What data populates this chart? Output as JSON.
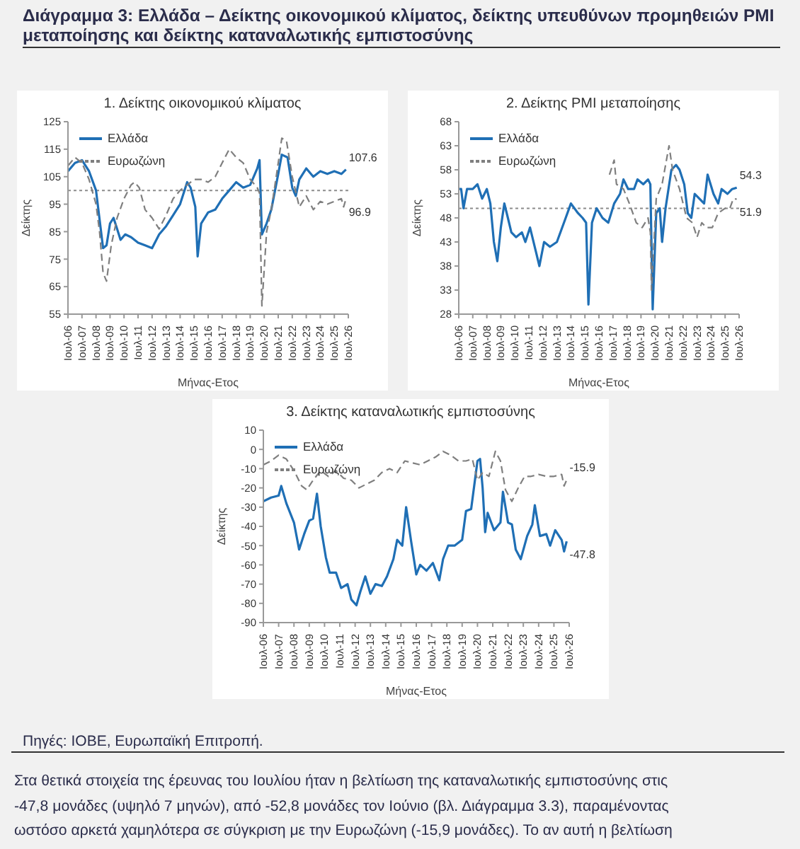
{
  "chart_data": [
    {
      "type": "other",
      "title": "Διάγραμμα 3: Ελλάδα – Δείκτης οικονομικού κλίματος, δείκτης υπευθύνων προμηθειών PMI μεταποίησης και δείκτης καταναλωτικής εμπιστοσύνης",
      "annotations": [
        "Πηγές: ΙΟΒΕ, Ευρωπαϊκή Επιτροπή.",
        "Στα θετικά στοιχεία της έρευνας του Ιουλίου ήταν η βελτίωση της καταναλωτικής εμπιστοσύνης στις",
        "-47,8 μονάδες (υψηλό 7 μηνών), από -52,8 μονάδες τον Ιούνιο (βλ. Διάγραμμα 3.3), παραμένοντας",
        "ωστόσο αρκετά χαμηλότερα σε σύγκριση με την Ευρωζώνη (-15,9 μονάδες). Το αν αυτή η βελτίωση"
      ]
    },
    {
      "type": "line",
      "title": "1. Δείκτης οικονομικού κλίματος",
      "xlabel": "Μήνας-Ετος",
      "ylabel": "Δείκτης",
      "legend": "top left",
      "xlim": [
        "2006-07",
        "2026-07"
      ],
      "xticks": [
        {
          "value": "2006-07",
          "label": "Ιουλ-06"
        },
        {
          "value": "2007-07",
          "label": "Ιουλ-07"
        },
        {
          "value": "2008-07",
          "label": "Ιουλ-08"
        },
        {
          "value": "2009-07",
          "label": "Ιουλ-09"
        },
        {
          "value": "2010-07",
          "label": "Ιουλ-10"
        },
        {
          "value": "2011-07",
          "label": "Ιουλ-11"
        },
        {
          "value": "2012-07",
          "label": "Ιουλ-12"
        },
        {
          "value": "2013-07",
          "label": "Ιουλ-13"
        },
        {
          "value": "2014-07",
          "label": "Ιουλ-14"
        },
        {
          "value": "2015-07",
          "label": "Ιουλ-15"
        },
        {
          "value": "2016-07",
          "label": "Ιουλ-16"
        },
        {
          "value": "2017-07",
          "label": "Ιουλ-17"
        },
        {
          "value": "2018-07",
          "label": "Ιουλ-18"
        },
        {
          "value": "2019-07",
          "label": "Ιουλ-19"
        },
        {
          "value": "2020-07",
          "label": "Ιουλ-20"
        },
        {
          "value": "2021-07",
          "label": "Ιουλ-21"
        },
        {
          "value": "2022-07",
          "label": "Ιουλ-22"
        },
        {
          "value": "2023-07",
          "label": "Ιουλ-23"
        },
        {
          "value": "2024-07",
          "label": "Ιουλ-24"
        },
        {
          "value": "2025-07",
          "label": "Ιουλ-25"
        },
        {
          "value": "2026-07",
          "label": "Ιουλ-26"
        }
      ],
      "ylim": [
        55,
        125
      ],
      "yticks": [
        55,
        65,
        75,
        85,
        95,
        105,
        115,
        125
      ],
      "ref_lines": [
        {
          "axis": "y",
          "value": 100,
          "color": "#8c8c8c",
          "line_style": "dotted"
        }
      ],
      "annotations": [
        {
          "text": "107.6",
          "x": "2026-05",
          "y": 107.6
        },
        {
          "text": "96.9",
          "x": "2026-05",
          "y": 96.9
        }
      ],
      "series": [
        {
          "name": "Ελλάδα",
          "color": "#1f6fb5",
          "line_style": "solid",
          "x": [
            "2006-07",
            "2007-01",
            "2007-07",
            "2008-01",
            "2008-07",
            "2009-01",
            "2009-04",
            "2009-07",
            "2009-10",
            "2010-01",
            "2010-04",
            "2010-08",
            "2011-01",
            "2011-07",
            "2012-01",
            "2012-07",
            "2013-01",
            "2013-07",
            "2014-01",
            "2014-07",
            "2015-01",
            "2015-04",
            "2015-08",
            "2015-10",
            "2016-01",
            "2016-07",
            "2017-01",
            "2017-07",
            "2018-01",
            "2018-07",
            "2019-01",
            "2019-07",
            "2020-01",
            "2020-03",
            "2020-05",
            "2020-09",
            "2021-01",
            "2021-07",
            "2021-10",
            "2022-03",
            "2022-07",
            "2022-10",
            "2023-01",
            "2023-07",
            "2024-01",
            "2024-07",
            "2025-01",
            "2025-07",
            "2026-01",
            "2026-05"
          ],
          "values": [
            107,
            110,
            111,
            107,
            100,
            79,
            80,
            88,
            90,
            86,
            82,
            84,
            83,
            81,
            80,
            79,
            84,
            87,
            91,
            95,
            103,
            101,
            94,
            76,
            88,
            92,
            93,
            97,
            100,
            103,
            101,
            102,
            108,
            111,
            84,
            88,
            93,
            106,
            113,
            112,
            101,
            98,
            104,
            108,
            105,
            107,
            106,
            107,
            106,
            107.6
          ]
        },
        {
          "name": "Ευρωζώνη",
          "color": "#7f7f7f",
          "line_style": "dashed",
          "x": [
            "2006-07",
            "2007-01",
            "2007-07",
            "2008-01",
            "2008-07",
            "2008-10",
            "2009-01",
            "2009-04",
            "2009-08",
            "2010-01",
            "2010-07",
            "2011-01",
            "2011-04",
            "2011-08",
            "2012-01",
            "2012-07",
            "2013-01",
            "2013-07",
            "2014-01",
            "2014-07",
            "2015-01",
            "2015-07",
            "2016-01",
            "2016-07",
            "2017-01",
            "2017-07",
            "2018-01",
            "2018-07",
            "2019-01",
            "2019-07",
            "2020-01",
            "2020-03",
            "2020-05",
            "2020-09",
            "2021-01",
            "2021-07",
            "2021-10",
            "2022-02",
            "2022-07",
            "2023-01",
            "2023-07",
            "2024-01",
            "2024-07",
            "2025-01",
            "2025-07",
            "2026-01",
            "2026-03",
            "2026-05"
          ],
          "values": [
            109,
            112,
            110,
            104,
            95,
            85,
            70,
            67,
            80,
            90,
            97,
            102,
            103,
            101,
            93,
            90,
            86,
            91,
            97,
            100,
            102,
            104,
            104,
            103,
            105,
            110,
            115,
            112,
            110,
            104,
            101,
            99,
            58,
            85,
            93,
            110,
            119,
            118,
            105,
            94,
            98,
            93,
            96,
            95,
            96,
            97,
            94,
            96.9
          ]
        }
      ]
    },
    {
      "type": "line",
      "title": "2. Δείκτης PMI μεταποίησης",
      "xlabel": "Μήνας-Ετος",
      "ylabel": "Δείκτης",
      "legend": "top left",
      "xlim": [
        "2006-07",
        "2026-07"
      ],
      "xticks": [
        {
          "value": "2006-07",
          "label": "Ιουλ-06"
        },
        {
          "value": "2007-07",
          "label": "Ιουλ-07"
        },
        {
          "value": "2008-07",
          "label": "Ιουλ-08"
        },
        {
          "value": "2009-07",
          "label": "Ιουλ-09"
        },
        {
          "value": "2010-07",
          "label": "Ιουλ-10"
        },
        {
          "value": "2011-07",
          "label": "Ιουλ-11"
        },
        {
          "value": "2012-07",
          "label": "Ιουλ-12"
        },
        {
          "value": "2013-07",
          "label": "Ιουλ-13"
        },
        {
          "value": "2014-07",
          "label": "Ιουλ-14"
        },
        {
          "value": "2015-07",
          "label": "Ιουλ-15"
        },
        {
          "value": "2016-07",
          "label": "Ιουλ-16"
        },
        {
          "value": "2017-07",
          "label": "Ιουλ-17"
        },
        {
          "value": "2018-07",
          "label": "Ιουλ-18"
        },
        {
          "value": "2019-07",
          "label": "Ιουλ-19"
        },
        {
          "value": "2020-07",
          "label": "Ιουλ-20"
        },
        {
          "value": "2021-07",
          "label": "Ιουλ-21"
        },
        {
          "value": "2022-07",
          "label": "Ιουλ-22"
        },
        {
          "value": "2023-07",
          "label": "Ιουλ-23"
        },
        {
          "value": "2024-07",
          "label": "Ιουλ-24"
        },
        {
          "value": "2025-07",
          "label": "Ιουλ-25"
        },
        {
          "value": "2026-07",
          "label": "Ιουλ-26"
        }
      ],
      "ylim": [
        28,
        68
      ],
      "yticks": [
        28,
        33,
        38,
        43,
        48,
        53,
        58,
        63,
        68
      ],
      "ref_lines": [
        {
          "axis": "y",
          "value": 50,
          "color": "#8c8c8c",
          "line_style": "dotted"
        }
      ],
      "annotations": [
        {
          "text": "54.3",
          "x": "2026-05",
          "y": 54.3
        },
        {
          "text": "51.9",
          "x": "2026-05",
          "y": 51.9
        }
      ],
      "series": [
        {
          "name": "Ελλάδα",
          "color": "#1f6fb5",
          "line_style": "solid",
          "x": [
            "2006-07",
            "2006-09",
            "2006-11",
            "2007-02",
            "2007-07",
            "2007-11",
            "2008-03",
            "2008-07",
            "2008-10",
            "2009-01",
            "2009-04",
            "2009-07",
            "2009-10",
            "2010-01",
            "2010-04",
            "2010-08",
            "2011-01",
            "2011-04",
            "2011-08",
            "2012-01",
            "2012-04",
            "2012-08",
            "2013-01",
            "2013-07",
            "2014-01",
            "2014-07",
            "2015-01",
            "2015-05",
            "2015-08",
            "2015-10",
            "2016-01",
            "2016-05",
            "2016-10",
            "2017-03",
            "2017-08",
            "2018-01",
            "2018-04",
            "2018-08",
            "2019-01",
            "2019-04",
            "2019-09",
            "2020-01",
            "2020-03",
            "2020-05",
            "2020-08",
            "2020-11",
            "2021-01",
            "2021-04",
            "2021-09",
            "2022-01",
            "2022-04",
            "2022-08",
            "2022-11",
            "2023-02",
            "2023-05",
            "2023-09",
            "2024-01",
            "2024-04",
            "2024-09",
            "2025-01",
            "2025-04",
            "2025-09",
            "2026-01",
            "2026-05"
          ],
          "values": [
            54,
            54,
            50,
            54,
            54,
            55,
            52,
            54,
            51,
            43,
            39,
            46,
            51,
            48,
            45,
            44,
            45,
            43,
            46,
            41,
            38,
            43,
            42,
            43,
            47,
            51,
            49,
            48,
            47,
            30,
            47,
            50,
            48,
            47,
            51,
            53,
            56,
            54,
            54,
            56,
            55,
            56,
            55,
            29,
            49,
            50,
            43,
            50,
            58,
            59,
            58,
            55,
            49,
            48,
            53,
            52,
            51,
            57,
            53,
            51,
            54,
            53,
            54,
            54.3
          ]
        },
        {
          "name": "Ευρωζώνη",
          "color": "#7f7f7f",
          "line_style": "dashed",
          "x": [
            "2017-04",
            "2017-08",
            "2017-10",
            "2018-04",
            "2018-09",
            "2019-03",
            "2019-08",
            "2020-01",
            "2020-03",
            "2020-04",
            "2020-08",
            "2021-01",
            "2021-07",
            "2021-10",
            "2022-04",
            "2022-10",
            "2023-03",
            "2023-07",
            "2023-11",
            "2024-03",
            "2024-08",
            "2025-01",
            "2025-07",
            "2025-11",
            "2026-02",
            "2026-05"
          ],
          "values": [
            57,
            60,
            55,
            54,
            51,
            47,
            46,
            48,
            45,
            33,
            52,
            55,
            63,
            58,
            54,
            48,
            47,
            44,
            47,
            46,
            46,
            49,
            50,
            50,
            52,
            51.9
          ]
        }
      ]
    },
    {
      "type": "line",
      "title": "3. Δείκτης καταναλωτικής εμπιστοσύνης",
      "xlabel": "Μήνας-Ετος",
      "ylabel": "Δείκτης",
      "legend": "top left",
      "xlim": [
        "2006-07",
        "2026-07"
      ],
      "xticks": [
        {
          "value": "2006-07",
          "label": "Ιουλ-06"
        },
        {
          "value": "2007-07",
          "label": "Ιουλ-07"
        },
        {
          "value": "2008-07",
          "label": "Ιουλ-08"
        },
        {
          "value": "2009-07",
          "label": "Ιουλ-09"
        },
        {
          "value": "2010-07",
          "label": "Ιουλ-10"
        },
        {
          "value": "2011-07",
          "label": "Ιουλ-11"
        },
        {
          "value": "2012-07",
          "label": "Ιουλ-12"
        },
        {
          "value": "2013-07",
          "label": "Ιουλ-13"
        },
        {
          "value": "2014-07",
          "label": "Ιουλ-14"
        },
        {
          "value": "2015-07",
          "label": "Ιουλ-15"
        },
        {
          "value": "2016-07",
          "label": "Ιουλ-16"
        },
        {
          "value": "2017-07",
          "label": "Ιουλ-17"
        },
        {
          "value": "2018-07",
          "label": "Ιουλ-18"
        },
        {
          "value": "2019-07",
          "label": "Ιουλ-19"
        },
        {
          "value": "2020-07",
          "label": "Ιουλ-20"
        },
        {
          "value": "2021-07",
          "label": "Ιουλ-21"
        },
        {
          "value": "2022-07",
          "label": "Ιουλ-22"
        },
        {
          "value": "2023-07",
          "label": "Ιουλ-23"
        },
        {
          "value": "2024-07",
          "label": "Ιουλ-24"
        },
        {
          "value": "2025-07",
          "label": "Ιουλ-25"
        },
        {
          "value": "2026-07",
          "label": "Ιουλ-26"
        }
      ],
      "ylim": [
        -90,
        10
      ],
      "yticks": [
        -90,
        -80,
        -70,
        -60,
        -50,
        -40,
        -30,
        -20,
        -10,
        0,
        10
      ],
      "annotations": [
        {
          "text": "-15.9",
          "x": "2026-05",
          "y": -15.9
        },
        {
          "text": "-47.8",
          "x": "2026-05",
          "y": -47.8
        }
      ],
      "series": [
        {
          "name": "Ελλάδα",
          "color": "#1f6fb5",
          "line_style": "solid",
          "x": [
            "2006-07",
            "2007-01",
            "2007-07",
            "2007-09",
            "2008-01",
            "2008-07",
            "2008-11",
            "2009-03",
            "2009-07",
            "2009-10",
            "2010-01",
            "2010-04",
            "2010-08",
            "2010-11",
            "2011-04",
            "2011-08",
            "2012-01",
            "2012-04",
            "2012-08",
            "2012-11",
            "2013-03",
            "2013-07",
            "2013-11",
            "2014-04",
            "2014-08",
            "2015-01",
            "2015-04",
            "2015-08",
            "2015-11",
            "2016-03",
            "2016-07",
            "2016-10",
            "2017-03",
            "2017-08",
            "2018-01",
            "2018-04",
            "2018-08",
            "2019-01",
            "2019-07",
            "2019-10",
            "2020-02",
            "2020-07",
            "2020-09",
            "2020-11",
            "2021-01",
            "2021-03",
            "2021-08",
            "2022-01",
            "2022-03",
            "2022-07",
            "2022-10",
            "2023-01",
            "2023-05",
            "2023-10",
            "2024-02",
            "2024-04",
            "2024-08",
            "2025-01",
            "2025-04",
            "2025-08",
            "2026-01",
            "2026-03",
            "2026-05"
          ],
          "values": [
            -27,
            -25,
            -24,
            -19,
            -28,
            -38,
            -52,
            -44,
            -37,
            -36,
            -23,
            -40,
            -56,
            -64,
            -64,
            -72,
            -70,
            -78,
            -81,
            -74,
            -66,
            -75,
            -70,
            -71,
            -66,
            -57,
            -47,
            -50,
            -30,
            -48,
            -65,
            -60,
            -63,
            -59,
            -68,
            -57,
            -50,
            -50,
            -47,
            -32,
            -31,
            -6,
            -5,
            -20,
            -43,
            -33,
            -42,
            -38,
            -22,
            -38,
            -39,
            -52,
            -57,
            -45,
            -39,
            -29,
            -45,
            -44,
            -50,
            -42,
            -47,
            -53,
            -47.8
          ]
        },
        {
          "name": "Ευρωζώνη",
          "color": "#7f7f7f",
          "line_style": "dashed",
          "x": [
            "2006-07",
            "2007-01",
            "2007-07",
            "2008-01",
            "2008-07",
            "2009-01",
            "2009-05",
            "2009-10",
            "2010-04",
            "2010-10",
            "2011-04",
            "2011-10",
            "2012-04",
            "2012-10",
            "2013-04",
            "2013-10",
            "2014-04",
            "2014-10",
            "2015-04",
            "2015-10",
            "2016-04",
            "2016-10",
            "2017-04",
            "2017-10",
            "2018-04",
            "2018-10",
            "2019-04",
            "2019-10",
            "2020-03",
            "2020-07",
            "2020-11",
            "2021-04",
            "2021-09",
            "2022-01",
            "2022-05",
            "2022-10",
            "2023-03",
            "2023-08",
            "2024-01",
            "2024-07",
            "2025-01",
            "2025-07",
            "2026-01",
            "2026-03",
            "2026-05"
          ],
          "values": [
            -8,
            -6,
            -3,
            -5,
            -11,
            -19,
            -21,
            -16,
            -11,
            -14,
            -11,
            -15,
            -16,
            -20,
            -18,
            -16,
            -12,
            -10,
            -12,
            -6,
            -7,
            -8,
            -6,
            -4,
            -1,
            -3,
            -6,
            -6,
            -5,
            -16,
            -12,
            -14,
            -1,
            -6,
            -21,
            -27,
            -20,
            -14,
            -14,
            -13,
            -14,
            -14,
            -13,
            -19,
            -15.9
          ]
        }
      ]
    }
  ]
}
